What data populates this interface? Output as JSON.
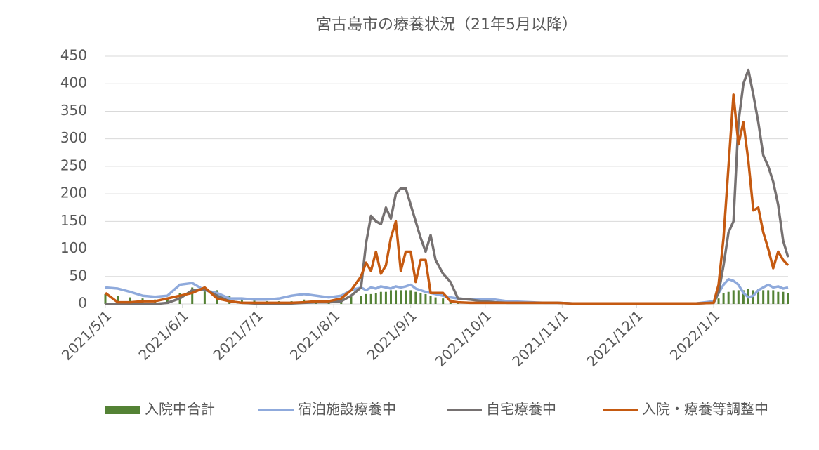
{
  "chart_data": {
    "type": "line",
    "title": "宮古島市の療養状況（21年5月以降）",
    "x": [
      "2021-05-01",
      "2021-05-06",
      "2021-05-11",
      "2021-05-16",
      "2021-05-21",
      "2021-05-26",
      "2021-05-31",
      "2021-06-05",
      "2021-06-10",
      "2021-06-15",
      "2021-06-20",
      "2021-06-25",
      "2021-06-30",
      "2021-07-05",
      "2021-07-10",
      "2021-07-15",
      "2021-07-20",
      "2021-07-25",
      "2021-07-30",
      "2021-08-04",
      "2021-08-08",
      "2021-08-12",
      "2021-08-14",
      "2021-08-16",
      "2021-08-18",
      "2021-08-20",
      "2021-08-22",
      "2021-08-24",
      "2021-08-26",
      "2021-08-28",
      "2021-08-30",
      "2021-09-01",
      "2021-09-03",
      "2021-09-05",
      "2021-09-07",
      "2021-09-09",
      "2021-09-11",
      "2021-09-14",
      "2021-09-17",
      "2021-09-20",
      "2021-09-25",
      "2021-09-30",
      "2021-10-05",
      "2021-10-10",
      "2021-10-15",
      "2021-10-20",
      "2021-10-25",
      "2021-10-30",
      "2021-11-05",
      "2021-11-15",
      "2021-11-25",
      "2021-12-05",
      "2021-12-15",
      "2021-12-25",
      "2022-01-01",
      "2022-01-03",
      "2022-01-05",
      "2022-01-07",
      "2022-01-09",
      "2022-01-11",
      "2022-01-13",
      "2022-01-15",
      "2022-01-17",
      "2022-01-19",
      "2022-01-21",
      "2022-01-23",
      "2022-01-25",
      "2022-01-27",
      "2022-01-29",
      "2022-01-31"
    ],
    "series": [
      {
        "name": "入院中合計",
        "type": "bar",
        "color": "#548235",
        "values": [
          18,
          15,
          12,
          10,
          8,
          10,
          20,
          30,
          30,
          25,
          15,
          12,
          8,
          5,
          5,
          5,
          8,
          5,
          5,
          10,
          15,
          15,
          18,
          18,
          20,
          22,
          22,
          25,
          25,
          25,
          25,
          25,
          22,
          20,
          18,
          15,
          12,
          10,
          8,
          5,
          3,
          3,
          2,
          2,
          1,
          1,
          1,
          0,
          0,
          0,
          0,
          0,
          0,
          0,
          2,
          10,
          20,
          22,
          25,
          25,
          25,
          28,
          25,
          28,
          25,
          25,
          25,
          22,
          22,
          20
        ]
      },
      {
        "name": "宿泊施設療養中",
        "type": "line",
        "color": "#8faadc",
        "values": [
          30,
          28,
          22,
          15,
          13,
          15,
          35,
          38,
          25,
          20,
          10,
          10,
          8,
          8,
          10,
          15,
          18,
          15,
          12,
          15,
          25,
          30,
          25,
          30,
          28,
          32,
          30,
          28,
          32,
          30,
          32,
          35,
          28,
          25,
          22,
          20,
          18,
          15,
          12,
          10,
          8,
          8,
          8,
          5,
          4,
          3,
          2,
          2,
          1,
          1,
          1,
          1,
          1,
          1,
          5,
          20,
          35,
          45,
          42,
          35,
          20,
          12,
          15,
          25,
          30,
          35,
          30,
          32,
          28,
          30
        ]
      },
      {
        "name": "自宅療養中",
        "type": "line",
        "color": "#767171",
        "values": [
          0,
          0,
          0,
          0,
          0,
          2,
          10,
          25,
          27,
          15,
          5,
          2,
          1,
          1,
          1,
          1,
          2,
          3,
          3,
          5,
          15,
          30,
          110,
          160,
          150,
          145,
          175,
          155,
          200,
          210,
          210,
          180,
          150,
          120,
          95,
          125,
          80,
          55,
          40,
          10,
          8,
          5,
          3,
          2,
          2,
          2,
          2,
          2,
          1,
          1,
          1,
          1,
          1,
          1,
          2,
          20,
          70,
          130,
          150,
          330,
          400,
          425,
          380,
          330,
          270,
          250,
          222,
          180,
          115,
          85
        ]
      },
      {
        "name": "入院・療養等調整中",
        "type": "line",
        "color": "#c55a11",
        "values": [
          20,
          3,
          3,
          5,
          5,
          10,
          15,
          20,
          30,
          10,
          5,
          2,
          2,
          2,
          2,
          2,
          3,
          5,
          5,
          10,
          25,
          50,
          75,
          60,
          95,
          55,
          70,
          120,
          150,
          60,
          95,
          95,
          40,
          80,
          80,
          20,
          20,
          20,
          5,
          3,
          2,
          2,
          2,
          2,
          2,
          2,
          2,
          2,
          1,
          1,
          1,
          1,
          1,
          1,
          2,
          35,
          120,
          250,
          380,
          290,
          330,
          260,
          170,
          175,
          130,
          100,
          65,
          95,
          80,
          70
        ]
      }
    ],
    "xlim": [
      "2021-05-01",
      "2022-01-31"
    ],
    "xticks": [
      {
        "value": "2021-05-01",
        "label": "2021/5/1"
      },
      {
        "value": "2021-06-01",
        "label": "2021/6/1"
      },
      {
        "value": "2021-07-01",
        "label": "2021/7/1"
      },
      {
        "value": "2021-08-01",
        "label": "2021/8/1"
      },
      {
        "value": "2021-09-01",
        "label": "2021/9/1"
      },
      {
        "value": "2021-10-01",
        "label": "2021/10/1"
      },
      {
        "value": "2021-11-01",
        "label": "2021/11/1"
      },
      {
        "value": "2021-12-01",
        "label": "2021/12/1"
      },
      {
        "value": "2022-01-01",
        "label": "2022/1/1"
      }
    ],
    "ylim": [
      0,
      450
    ],
    "yticks": [
      0,
      50,
      100,
      150,
      200,
      250,
      300,
      350,
      400,
      450
    ],
    "grid": true,
    "legend": "bottom"
  }
}
